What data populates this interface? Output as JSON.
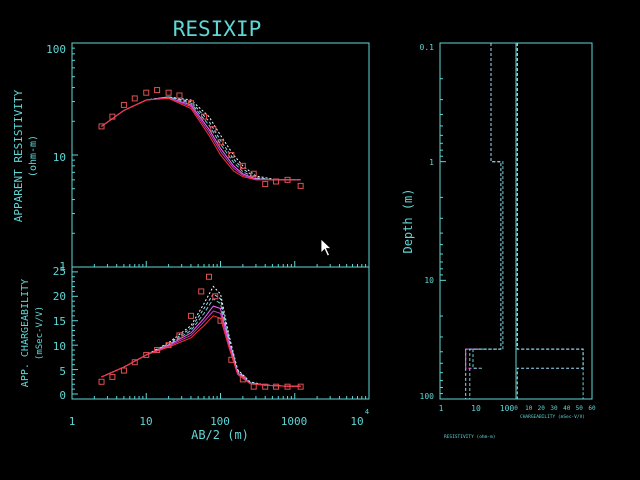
{
  "title": "RESIXIP",
  "resistivity_panel": {
    "ylabel_line1": "APPARENT RESISTIVITY",
    "ylabel_line2": "(ohm-m)",
    "yticks": [
      "100",
      "10",
      "1"
    ]
  },
  "chargeability_panel": {
    "ylabel_line1": "APP. CHARGEABILITY",
    "ylabel_line2": "(mSec-V/V)",
    "yticks": [
      "25",
      "20",
      "15",
      "10",
      "5",
      "0"
    ]
  },
  "x_axis": {
    "label": "AB/2 (m)",
    "ticks": [
      "1",
      "10",
      "100",
      "1000",
      "10"
    ],
    "exponent": "4"
  },
  "depth_panel": {
    "ylabel": "Depth (m)",
    "yticks": [
      "0.1",
      "1",
      "10",
      "100"
    ],
    "resistivity_ticks": [
      "1",
      "10",
      "100"
    ],
    "resistivity_label": "RESISTIVITY (ohm-m)",
    "chargeability_ticks": [
      "0",
      "10",
      "20",
      "30",
      "40",
      "50",
      "60"
    ],
    "chargeability_label": "CHARGEABILITY (mSec-V/V)"
  },
  "colors": {
    "axis": "#5fd7d7",
    "data": "#e05050",
    "fits": [
      "#ffffff",
      "#a0e0ff",
      "#70d0d0",
      "#ff60ff",
      "#c040c0",
      "#ff3030"
    ]
  },
  "chart_data": [
    {
      "type": "scatter",
      "title": "RESIXIP",
      "xlabel": "AB/2 (m)",
      "ylabel": "APPARENT RESISTIVITY (ohm-m)",
      "xscale": "log",
      "yscale": "log",
      "xlim": [
        1,
        10000
      ],
      "ylim": [
        1,
        100
      ],
      "observed": {
        "x": [
          2.5,
          3.5,
          5,
          7,
          10,
          14,
          20,
          28,
          40,
          60,
          80,
          100,
          140,
          200,
          280,
          400,
          560,
          800,
          1200
        ],
        "y": [
          18,
          22,
          28,
          32,
          36,
          38,
          36,
          34,
          29,
          22,
          17,
          13,
          10,
          8,
          6.8,
          5.5,
          5.8,
          6,
          5.3
        ]
      },
      "fits": [
        {
          "x": [
            2.5,
            5,
            10,
            20,
            40,
            70,
            100,
            150,
            200,
            300,
            500,
            800,
            1200
          ],
          "y": [
            18,
            25,
            31,
            33,
            31,
            22,
            15,
            10,
            8,
            6.5,
            6.1,
            6.0,
            6.0
          ]
        },
        {
          "x": [
            2.5,
            5,
            10,
            20,
            40,
            70,
            100,
            150,
            200,
            300,
            500,
            800,
            1200
          ],
          "y": [
            18,
            25,
            31,
            33,
            30,
            20,
            13.5,
            9.2,
            7.5,
            6.3,
            6.0,
            6.0,
            6.0
          ]
        },
        {
          "x": [
            2.5,
            5,
            10,
            20,
            40,
            70,
            100,
            150,
            200,
            300,
            500,
            800,
            1200
          ],
          "y": [
            18,
            25,
            31,
            33,
            29,
            18.5,
            12.5,
            8.6,
            7.1,
            6.2,
            6.0,
            6.0,
            6.0
          ]
        },
        {
          "x": [
            2.5,
            5,
            10,
            20,
            40,
            70,
            100,
            150,
            200,
            300,
            500,
            800,
            1200
          ],
          "y": [
            18,
            25,
            31,
            32.5,
            28,
            17,
            11.5,
            8.0,
            6.8,
            6.1,
            6.0,
            6.0,
            6.0
          ]
        },
        {
          "x": [
            2.5,
            5,
            10,
            20,
            40,
            70,
            100,
            150,
            200,
            300,
            500,
            800,
            1200
          ],
          "y": [
            18,
            25,
            31,
            32.5,
            27,
            16,
            10.8,
            7.6,
            6.6,
            6.0,
            6.0,
            6.0,
            6.0
          ]
        },
        {
          "x": [
            2.5,
            5,
            10,
            20,
            40,
            70,
            100,
            150,
            200,
            300,
            500,
            800,
            1200
          ],
          "y": [
            18,
            25,
            31,
            32,
            26,
            15,
            10,
            7.2,
            6.4,
            6.0,
            6.0,
            6.0,
            6.0
          ]
        }
      ]
    },
    {
      "type": "scatter",
      "xlabel": "AB/2 (m)",
      "ylabel": "APP. CHARGEABILITY (mSec-V/V)",
      "xscale": "log",
      "yscale": "linear",
      "xlim": [
        1,
        10000
      ],
      "ylim": [
        0,
        26
      ],
      "observed": {
        "x": [
          2.5,
          3.5,
          5,
          7,
          10,
          14,
          20,
          28,
          40,
          55,
          70,
          85,
          100,
          140,
          200,
          280,
          400,
          560,
          800,
          1200
        ],
        "y": [
          2.5,
          3.5,
          4.8,
          6.5,
          8,
          9,
          10,
          12,
          16,
          21,
          24,
          20,
          15,
          7,
          3,
          1.5,
          1.5,
          1.5,
          1.5,
          1.5
        ]
      },
      "fits": [
        {
          "x": [
            2.5,
            5,
            10,
            20,
            40,
            60,
            80,
            100,
            130,
            170,
            250,
            400,
            800,
            1200
          ],
          "y": [
            3.5,
            5.5,
            8,
            10.5,
            14,
            18.5,
            22,
            20.5,
            12,
            5,
            2.5,
            1.8,
            1.6,
            1.6
          ]
        },
        {
          "x": [
            2.5,
            5,
            10,
            20,
            40,
            60,
            80,
            100,
            130,
            170,
            250,
            400,
            800,
            1200
          ],
          "y": [
            3.5,
            5.5,
            8,
            10.3,
            13.5,
            17.5,
            20.5,
            19.5,
            11.5,
            4.8,
            2.4,
            1.8,
            1.6,
            1.6
          ]
        },
        {
          "x": [
            2.5,
            5,
            10,
            20,
            40,
            60,
            80,
            100,
            130,
            170,
            250,
            400,
            800,
            1200
          ],
          "y": [
            3.5,
            5.5,
            8,
            10.1,
            13,
            16.5,
            19.5,
            18.5,
            11,
            4.6,
            2.3,
            1.8,
            1.6,
            1.6
          ]
        },
        {
          "x": [
            2.5,
            5,
            10,
            20,
            40,
            60,
            80,
            100,
            130,
            170,
            250,
            400,
            800,
            1200
          ],
          "y": [
            3.5,
            5.5,
            8,
            10,
            12.5,
            15.5,
            18,
            17.5,
            10.5,
            4.4,
            2.2,
            1.8,
            1.6,
            1.6
          ]
        },
        {
          "x": [
            2.5,
            5,
            10,
            20,
            40,
            60,
            80,
            100,
            130,
            170,
            250,
            400,
            800,
            1200
          ],
          "y": [
            3.5,
            5.5,
            8,
            9.8,
            12,
            14.8,
            17,
            16.5,
            10,
            4.2,
            2.2,
            1.8,
            1.6,
            1.6
          ]
        },
        {
          "x": [
            2.5,
            5,
            10,
            20,
            40,
            60,
            80,
            100,
            130,
            170,
            250,
            400,
            800,
            1200
          ],
          "y": [
            3.5,
            5.5,
            8,
            9.6,
            11.5,
            14,
            16,
            15.5,
            9.5,
            4,
            2.1,
            1.8,
            1.6,
            1.6
          ]
        }
      ]
    },
    {
      "type": "line",
      "ylabel": "Depth (m)",
      "yscale": "log",
      "ylim": [
        0.1,
        100
      ],
      "resistivity_xscale": "log",
      "resistivity_xlim": [
        1,
        200
      ],
      "chargeability_xlim": [
        0,
        60
      ],
      "resistivity_models": [
        {
          "depths": [
            0.1,
            1,
            1,
            38,
            38,
            100
          ],
          "values": [
            35,
            35,
            80,
            80,
            8,
            8
          ]
        },
        {
          "depths": [
            0.1,
            1,
            1,
            38,
            38,
            100
          ],
          "values": [
            35,
            35,
            70,
            70,
            6,
            6
          ]
        },
        {
          "depths": [
            38,
            38,
            55,
            55
          ],
          "values": [
            15,
            6,
            6,
            15
          ]
        },
        {
          "depths": [
            38,
            38,
            55,
            55
          ],
          "values": [
            20,
            10,
            10,
            20
          ]
        }
      ],
      "chargeability_models": [
        {
          "depths": [
            0.1,
            38,
            38,
            100
          ],
          "values": [
            1,
            1,
            53,
            53
          ]
        },
        {
          "depths": [
            0.1,
            38,
            38,
            55,
            55,
            100
          ],
          "values": [
            1,
            1,
            53,
            53,
            1,
            1
          ]
        }
      ]
    }
  ]
}
